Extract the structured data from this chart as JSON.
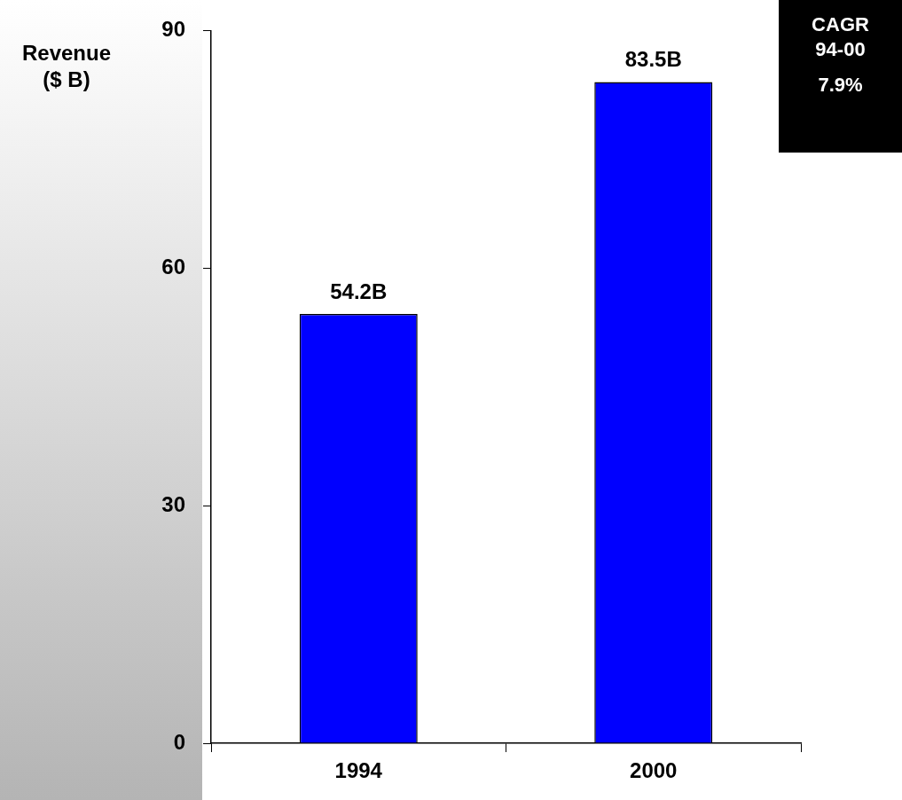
{
  "chart_data": {
    "type": "bar",
    "ylabel": "Revenue ($ B)",
    "categories": [
      "1994",
      "2000"
    ],
    "values": [
      54.2,
      83.5
    ],
    "value_labels": [
      "54.2B",
      "83.5B"
    ],
    "color": "#0000ff",
    "ylim": [
      0,
      90
    ],
    "yticks": [
      0,
      30,
      60,
      90
    ],
    "grid": false,
    "legend": false,
    "annotations": [
      "CAGR 94-00",
      "7.9%"
    ]
  }
}
